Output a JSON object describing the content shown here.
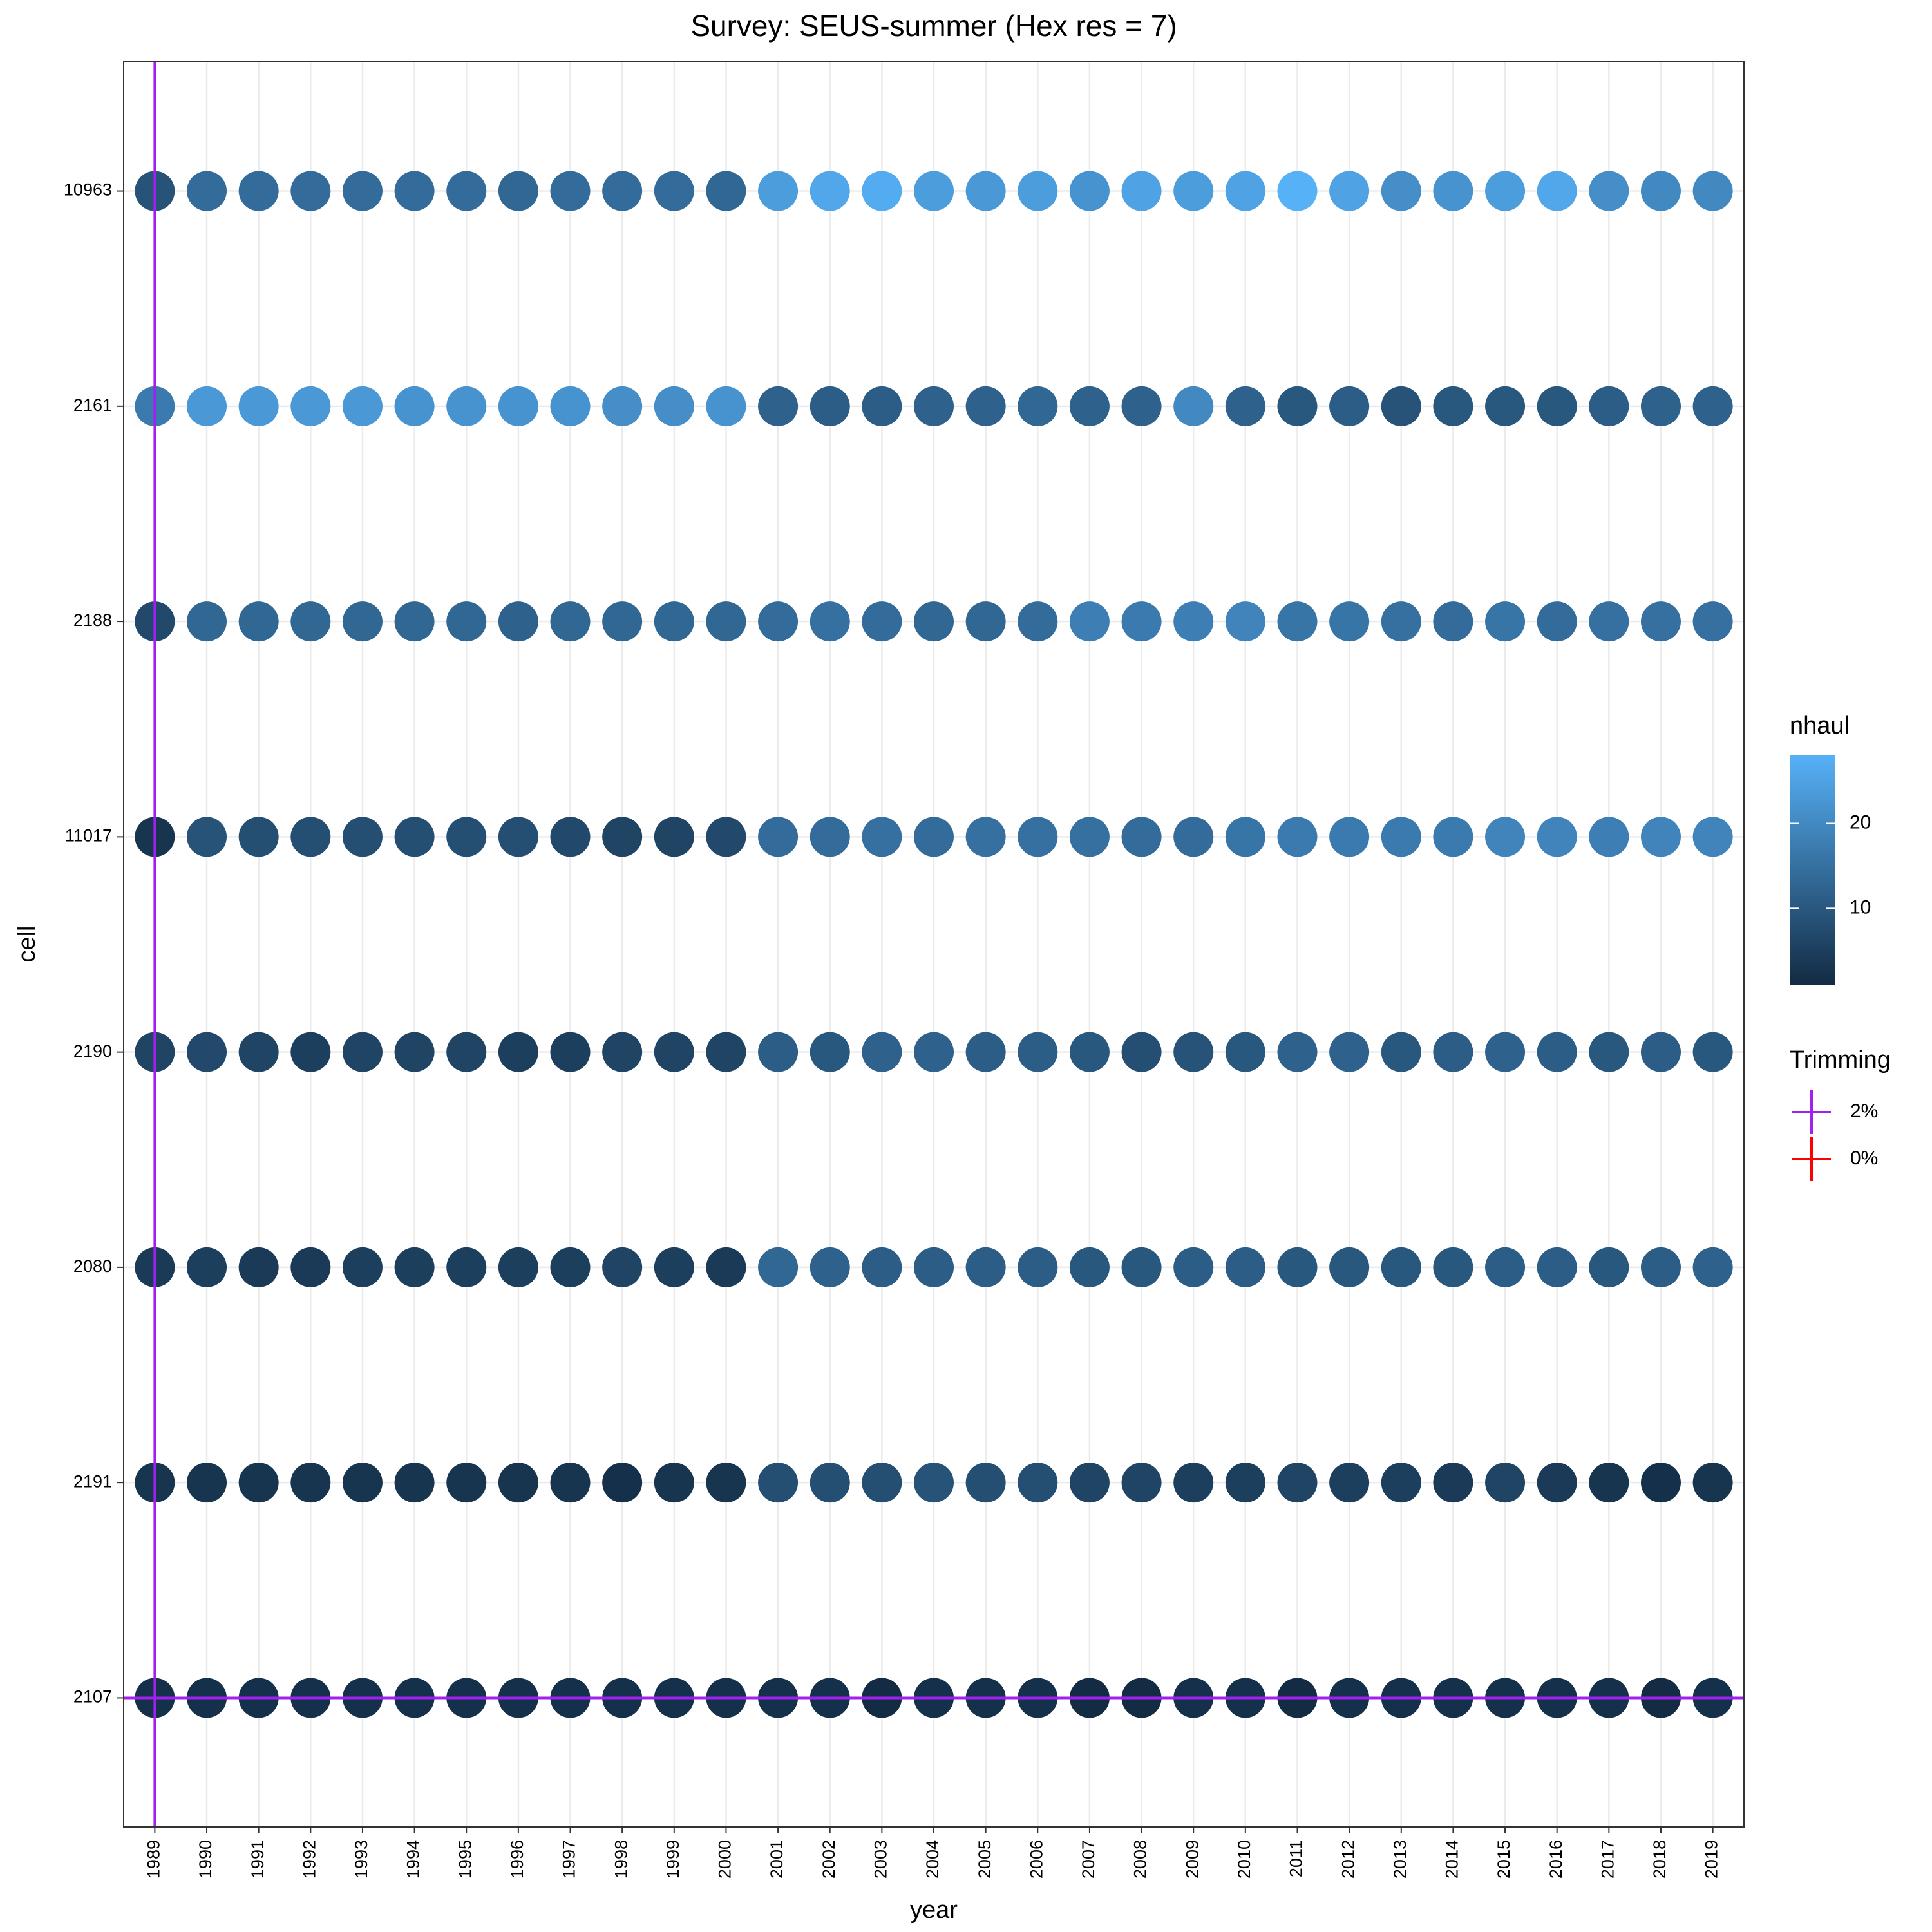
{
  "chart_data": {
    "type": "dot_matrix",
    "title": "Survey: SEUS-summer (Hex res = 7)",
    "x_label": "year",
    "y_label": "cell",
    "categories": [
      "1989",
      "1990",
      "1991",
      "1992",
      "1993",
      "1994",
      "1995",
      "1996",
      "1997",
      "1998",
      "1999",
      "2000",
      "2001",
      "2002",
      "2003",
      "2004",
      "2005",
      "2006",
      "2007",
      "2008",
      "2009",
      "2010",
      "2011",
      "2012",
      "2013",
      "2014",
      "2015",
      "2016",
      "2017",
      "2018",
      "2019"
    ],
    "cells": [
      "2107",
      "2191",
      "2080",
      "2190",
      "11017",
      "2188",
      "2161",
      "10963"
    ],
    "values": [
      [
        2,
        2,
        2,
        2,
        2,
        2,
        2,
        2,
        2,
        2,
        2,
        2,
        2,
        2,
        1,
        2,
        2,
        2,
        1,
        1,
        2,
        2,
        1,
        2,
        2,
        2,
        2,
        2,
        2,
        1,
        2
      ],
      [
        3,
        3,
        3,
        3,
        3,
        3,
        3,
        3,
        3,
        2,
        3,
        3,
        8,
        8,
        8,
        9,
        8,
        8,
        6,
        6,
        5,
        5,
        6,
        5,
        5,
        4,
        6,
        4,
        3,
        2,
        3
      ],
      [
        4,
        5,
        4,
        4,
        5,
        5,
        5,
        5,
        5,
        6,
        5,
        4,
        13,
        12,
        11,
        11,
        11,
        11,
        10,
        10,
        11,
        11,
        10,
        10,
        10,
        10,
        11,
        11,
        10,
        11,
        12
      ],
      [
        6,
        7,
        6,
        5,
        6,
        6,
        6,
        5,
        5,
        6,
        6,
        6,
        11,
        10,
        12,
        12,
        11,
        11,
        10,
        8,
        9,
        10,
        12,
        12,
        10,
        11,
        12,
        11,
        10,
        11,
        10
      ],
      [
        3,
        9,
        8,
        8,
        8,
        8,
        8,
        8,
        7,
        6,
        6,
        7,
        14,
        14,
        15,
        14,
        15,
        15,
        15,
        14,
        14,
        16,
        17,
        17,
        17,
        17,
        19,
        19,
        18,
        19,
        19
      ],
      [
        7,
        13,
        13,
        13,
        13,
        13,
        13,
        12,
        13,
        13,
        13,
        13,
        14,
        15,
        14,
        13,
        13,
        14,
        18,
        17,
        18,
        19,
        16,
        16,
        15,
        14,
        16,
        14,
        15,
        15,
        15
      ],
      [
        17,
        23,
        23,
        23,
        23,
        22,
        22,
        22,
        22,
        21,
        21,
        22,
        12,
        11,
        11,
        12,
        12,
        13,
        12,
        12,
        20,
        12,
        10,
        11,
        9,
        10,
        10,
        10,
        11,
        12,
        12
      ],
      [
        9,
        14,
        14,
        14,
        14,
        14,
        14,
        13,
        14,
        14,
        14,
        13,
        24,
        26,
        27,
        24,
        23,
        24,
        22,
        25,
        24,
        25,
        28,
        25,
        21,
        22,
        24,
        26,
        21,
        20,
        20
      ]
    ],
    "colorbar": {
      "title": "nhaul",
      "low": "#132B43",
      "high": "#56B1F7",
      "ticks": [
        10,
        20
      ]
    },
    "trimming": {
      "title": "Trimming",
      "entries": [
        {
          "label": "2%",
          "color": "#A020F0"
        },
        {
          "label": "0%",
          "color": "#FF0000"
        }
      ]
    },
    "vlines": [
      "1989"
    ],
    "hlines": [
      "2107"
    ],
    "line_color": "#A020F0",
    "grid": true
  }
}
